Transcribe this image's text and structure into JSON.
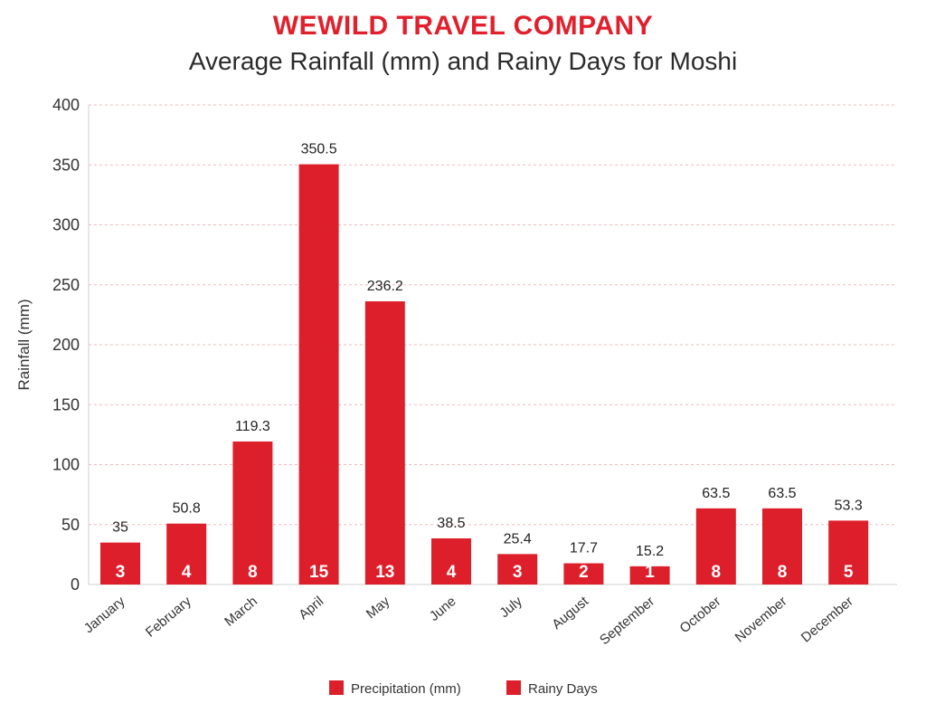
{
  "header": {
    "brand": "WEWILD TRAVEL COMPANY",
    "title": "Average Rainfall (mm) and Rainy Days for Moshi"
  },
  "chart_data": {
    "type": "bar",
    "title": "Average Rainfall (mm) and Rainy Days for Moshi",
    "xlabel": "",
    "ylabel": "Rainfall (mm)",
    "ylim": [
      0,
      400
    ],
    "yticks": [
      0,
      50,
      100,
      150,
      200,
      250,
      300,
      350,
      400
    ],
    "grid": true,
    "legend_position": "bottom",
    "categories": [
      "January",
      "February",
      "March",
      "April",
      "May",
      "June",
      "July",
      "August",
      "September",
      "October",
      "November",
      "December"
    ],
    "series": [
      {
        "name": "Precipitation (mm)",
        "values": [
          35,
          50.8,
          119.3,
          350.5,
          236.2,
          38.5,
          25.4,
          17.7,
          15.2,
          63.5,
          63.5,
          53.3
        ],
        "color": "#dd1f2b"
      },
      {
        "name": "Rainy Days",
        "values": [
          3,
          4,
          8,
          15,
          13,
          4,
          3,
          2,
          1,
          8,
          8,
          5
        ],
        "color": "#dd1f2b"
      }
    ],
    "grid_color": "#f2b8bb"
  }
}
